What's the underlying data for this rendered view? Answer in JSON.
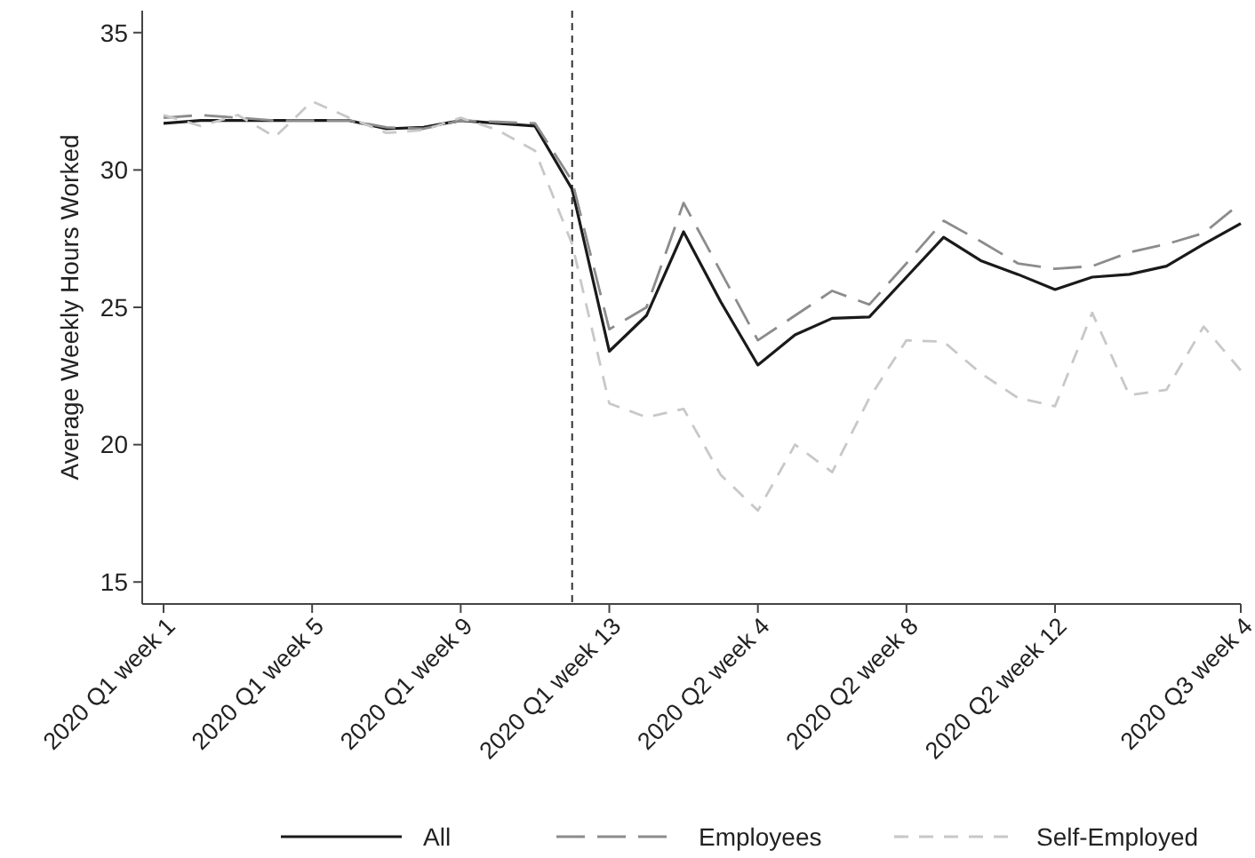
{
  "chart_data": {
    "type": "line",
    "ylabel": "Average Weekly Hours Worked",
    "categories": [
      "2020 Q1 week 1",
      null,
      null,
      null,
      "2020 Q1 week 5",
      null,
      null,
      null,
      "2020 Q1 week 9",
      null,
      null,
      null,
      "2020 Q1 week 13",
      null,
      null,
      null,
      "2020 Q2 week 4",
      null,
      null,
      null,
      "2020 Q2 week 8",
      null,
      null,
      null,
      "2020 Q2 week 12",
      null,
      null,
      null,
      null,
      "2020 Q3 week 4"
    ],
    "ylim": [
      14.2,
      35.8
    ],
    "yticks": [
      15,
      20,
      25,
      30,
      35
    ],
    "series": [
      {
        "name": "All",
        "color": "#1a1a1a",
        "line_style": "solid",
        "values": [
          31.7,
          31.8,
          31.8,
          31.8,
          31.8,
          31.8,
          31.5,
          31.55,
          31.8,
          31.7,
          31.6,
          29.3,
          23.4,
          24.7,
          27.75,
          25.2,
          22.9,
          24.0,
          24.6,
          24.65,
          26.1,
          27.55,
          26.7,
          26.2,
          25.65,
          26.1,
          26.2,
          26.5,
          27.3,
          28.05
        ]
      },
      {
        "name": "Employees",
        "color": "#8c8c8c",
        "line_style": "dashed",
        "values": [
          31.9,
          32.0,
          31.9,
          31.8,
          31.8,
          31.8,
          31.55,
          31.5,
          31.8,
          31.75,
          31.7,
          29.6,
          24.2,
          25.0,
          28.8,
          26.3,
          23.8,
          24.7,
          25.6,
          25.1,
          26.6,
          28.15,
          27.4,
          26.6,
          26.4,
          26.5,
          27.0,
          27.3,
          27.7,
          28.8
        ]
      },
      {
        "name": "Self-Employed",
        "color": "#c8c8c8",
        "line_style": "dotted",
        "values": [
          32.0,
          31.6,
          32.0,
          31.2,
          32.5,
          31.9,
          31.35,
          31.45,
          31.9,
          31.45,
          30.7,
          27.3,
          21.5,
          21.0,
          21.3,
          18.9,
          17.6,
          20.0,
          19.0,
          21.7,
          23.8,
          23.75,
          22.6,
          21.7,
          21.4,
          24.8,
          21.8,
          22.0,
          24.3,
          22.7
        ]
      }
    ],
    "legend": "bottom"
  }
}
